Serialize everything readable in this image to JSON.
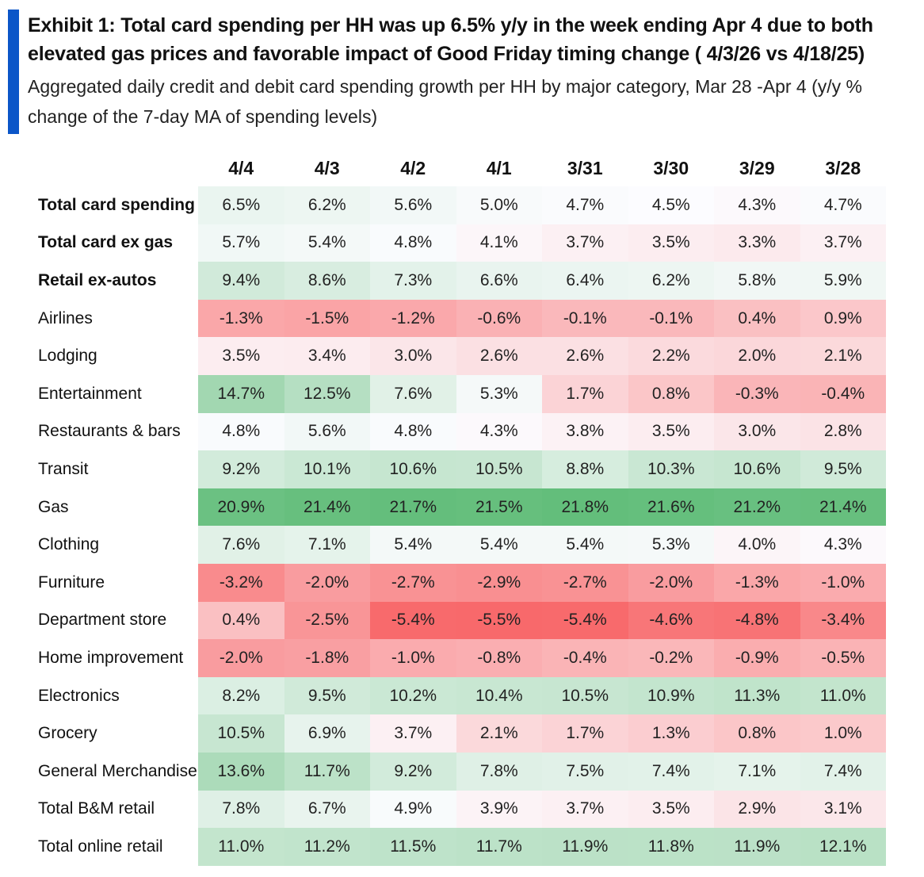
{
  "title": "Exhibit 1: Total card spending per HH was up 6.5% y/y in the week ending Apr 4 due to both elevated gas prices and favorable impact of Good Friday timing change ( 4/3/26 vs 4/18/25)",
  "subtitle": "Aggregated daily credit and debit card spending growth per HH by major category, Mar 28 -Apr 4 (y/y % change of the 7-day MA of spending levels)",
  "colors": {
    "accent": "#0b56c8",
    "positive": "#63be7b",
    "negative": "#f8696b",
    "neutral": "#fcfcff"
  },
  "chart_data": {
    "type": "table",
    "subtype": "heatmap",
    "unit": "%",
    "columns": [
      "4/4",
      "4/3",
      "4/2",
      "4/1",
      "3/31",
      "3/30",
      "3/29",
      "3/28"
    ],
    "rows": [
      {
        "label": "Total card spending",
        "bold": true,
        "values": [
          6.5,
          6.2,
          5.6,
          5.0,
          4.7,
          4.5,
          4.3,
          4.7
        ],
        "display": [
          "6.5%",
          "6.2%",
          "5.6%",
          "5.0%",
          "4.7%",
          "4.5%",
          "4.3%",
          "4.7%"
        ]
      },
      {
        "label": "Total card ex gas",
        "bold": true,
        "values": [
          5.7,
          5.4,
          4.8,
          4.1,
          3.7,
          3.5,
          3.3,
          3.7
        ],
        "display": [
          "5.7%",
          "5.4%",
          "4.8%",
          "4.1%",
          "3.7%",
          "3.5%",
          "3.3%",
          "3.7%"
        ]
      },
      {
        "label": "Retail ex-autos",
        "bold": true,
        "values": [
          9.4,
          8.6,
          7.3,
          6.6,
          6.4,
          6.2,
          5.8,
          5.9
        ],
        "display": [
          "9.4%",
          "8.6%",
          "7.3%",
          "6.6%",
          "6.4%",
          "6.2%",
          "5.8%",
          "5.9%"
        ]
      },
      {
        "label": "Airlines",
        "bold": false,
        "values": [
          -1.3,
          -1.5,
          -1.2,
          -0.6,
          -0.1,
          -0.1,
          0.4,
          0.9
        ],
        "display": [
          "-1.3%",
          "-1.5%",
          "-1.2%",
          "-0.6%",
          "-0.1%",
          "-0.1%",
          "0.4%",
          "0.9%"
        ]
      },
      {
        "label": "Lodging",
        "bold": false,
        "values": [
          3.5,
          3.4,
          3.0,
          2.6,
          2.6,
          2.2,
          2.0,
          2.1
        ],
        "display": [
          "3.5%",
          "3.4%",
          "3.0%",
          "2.6%",
          "2.6%",
          "2.2%",
          "2.0%",
          "2.1%"
        ]
      },
      {
        "label": "Entertainment",
        "bold": false,
        "values": [
          14.7,
          12.5,
          7.6,
          5.3,
          1.7,
          0.8,
          -0.3,
          -0.4
        ],
        "display": [
          "14.7%",
          "12.5%",
          "7.6%",
          "5.3%",
          "1.7%",
          "0.8%",
          "-0.3%",
          "-0.4%"
        ]
      },
      {
        "label": "Restaurants & bars",
        "bold": false,
        "values": [
          4.8,
          5.6,
          4.8,
          4.3,
          3.8,
          3.5,
          3.0,
          2.8
        ],
        "display": [
          "4.8%",
          "5.6%",
          "4.8%",
          "4.3%",
          "3.8%",
          "3.5%",
          "3.0%",
          "2.8%"
        ]
      },
      {
        "label": "Transit",
        "bold": false,
        "values": [
          9.2,
          10.1,
          10.6,
          10.5,
          8.8,
          10.3,
          10.6,
          9.5
        ],
        "display": [
          "9.2%",
          "10.1%",
          "10.6%",
          "10.5%",
          "8.8%",
          "10.3%",
          "10.6%",
          "9.5%"
        ]
      },
      {
        "label": "Gas",
        "bold": false,
        "values": [
          20.9,
          21.4,
          21.7,
          21.5,
          21.8,
          21.6,
          21.2,
          21.4
        ],
        "display": [
          "20.9%",
          "21.4%",
          "21.7%",
          "21.5%",
          "21.8%",
          "21.6%",
          "21.2%",
          "21.4%"
        ]
      },
      {
        "label": "Clothing",
        "bold": false,
        "values": [
          7.6,
          7.1,
          5.4,
          5.4,
          5.4,
          5.3,
          4.0,
          4.3
        ],
        "display": [
          "7.6%",
          "7.1%",
          "5.4%",
          "5.4%",
          "5.4%",
          "5.3%",
          "4.0%",
          "4.3%"
        ]
      },
      {
        "label": "Furniture",
        "bold": false,
        "values": [
          -3.2,
          -2.0,
          -2.7,
          -2.9,
          -2.7,
          -2.0,
          -1.3,
          -1.0
        ],
        "display": [
          "-3.2%",
          "-2.0%",
          "-2.7%",
          "-2.9%",
          "-2.7%",
          "-2.0%",
          "-1.3%",
          "-1.0%"
        ]
      },
      {
        "label": "Department store",
        "bold": false,
        "values": [
          0.4,
          -2.5,
          -5.4,
          -5.5,
          -5.4,
          -4.6,
          -4.8,
          -3.4
        ],
        "display": [
          "0.4%",
          "-2.5%",
          "-5.4%",
          "-5.5%",
          "-5.4%",
          "-4.6%",
          "-4.8%",
          "-3.4%"
        ]
      },
      {
        "label": "Home improvement",
        "bold": false,
        "values": [
          -2.0,
          -1.8,
          -1.0,
          -0.8,
          -0.4,
          -0.2,
          -0.9,
          -0.5
        ],
        "display": [
          "-2.0%",
          "-1.8%",
          "-1.0%",
          "-0.8%",
          "-0.4%",
          "-0.2%",
          "-0.9%",
          "-0.5%"
        ]
      },
      {
        "label": "Electronics",
        "bold": false,
        "values": [
          8.2,
          9.5,
          10.2,
          10.4,
          10.5,
          10.9,
          11.3,
          11.0
        ],
        "display": [
          "8.2%",
          "9.5%",
          "10.2%",
          "10.4%",
          "10.5%",
          "10.9%",
          "11.3%",
          "11.0%"
        ]
      },
      {
        "label": "Grocery",
        "bold": false,
        "values": [
          10.5,
          6.9,
          3.7,
          2.1,
          1.7,
          1.3,
          0.8,
          1.0
        ],
        "display": [
          "10.5%",
          "6.9%",
          "3.7%",
          "2.1%",
          "1.7%",
          "1.3%",
          "0.8%",
          "1.0%"
        ]
      },
      {
        "label": "General Merchandise",
        "bold": false,
        "values": [
          13.6,
          11.7,
          9.2,
          7.8,
          7.5,
          7.4,
          7.1,
          7.4
        ],
        "display": [
          "13.6%",
          "11.7%",
          "9.2%",
          "7.8%",
          "7.5%",
          "7.4%",
          "7.1%",
          "7.4%"
        ]
      },
      {
        "label": "Total B&M retail",
        "bold": false,
        "values": [
          7.8,
          6.7,
          4.9,
          3.9,
          3.7,
          3.5,
          2.9,
          3.1
        ],
        "display": [
          "7.8%",
          "6.7%",
          "4.9%",
          "3.9%",
          "3.7%",
          "3.5%",
          "2.9%",
          "3.1%"
        ]
      },
      {
        "label": "Total online retail",
        "bold": false,
        "values": [
          11.0,
          11.2,
          11.5,
          11.7,
          11.9,
          11.8,
          11.9,
          12.1
        ],
        "display": [
          "11.0%",
          "11.2%",
          "11.5%",
          "11.7%",
          "11.9%",
          "11.8%",
          "11.9%",
          "12.1%"
        ]
      }
    ]
  }
}
